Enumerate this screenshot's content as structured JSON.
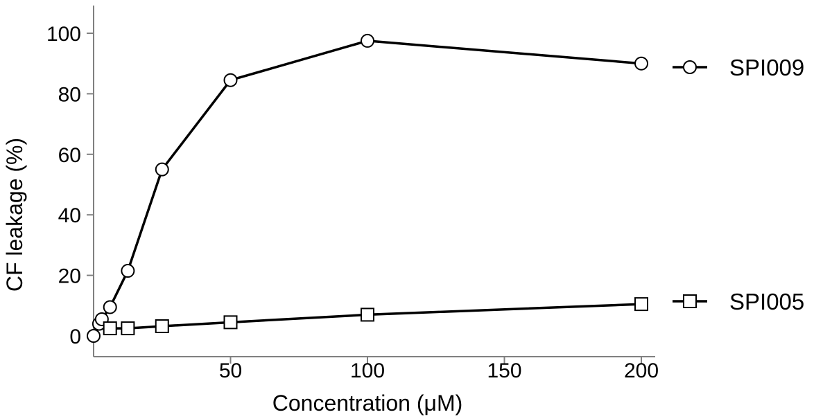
{
  "chart_data": {
    "type": "line",
    "title": "",
    "xlabel": "Concentration (μM)",
    "ylabel": "CF leakage (%)",
    "xlim": [
      0,
      200
    ],
    "ylim": [
      0,
      110
    ],
    "x_ticks": [
      50,
      100,
      150,
      200
    ],
    "x_tick_labels": [
      "50",
      "100",
      "150",
      "200"
    ],
    "y_ticks": [
      0,
      20,
      40,
      60,
      80,
      100
    ],
    "y_tick_labels": [
      "0",
      "20",
      "40",
      "60",
      "80",
      "100"
    ],
    "grid": false,
    "legend_placement": "right, at end of each series",
    "series": [
      {
        "name": "SPI009",
        "marker": "circle",
        "color": "#000000",
        "x": [
          0,
          2,
          3,
          6,
          12.5,
          25,
          50,
          100,
          200
        ],
        "y": [
          0,
          4,
          5.5,
          9.5,
          21.5,
          55,
          84.5,
          97.5,
          90
        ]
      },
      {
        "name": "SPI005",
        "marker": "square",
        "color": "#000000",
        "x": [
          6,
          12.5,
          25,
          50,
          100,
          200
        ],
        "y": [
          2.5,
          2.5,
          3.2,
          4.5,
          7,
          10.5
        ]
      }
    ]
  }
}
